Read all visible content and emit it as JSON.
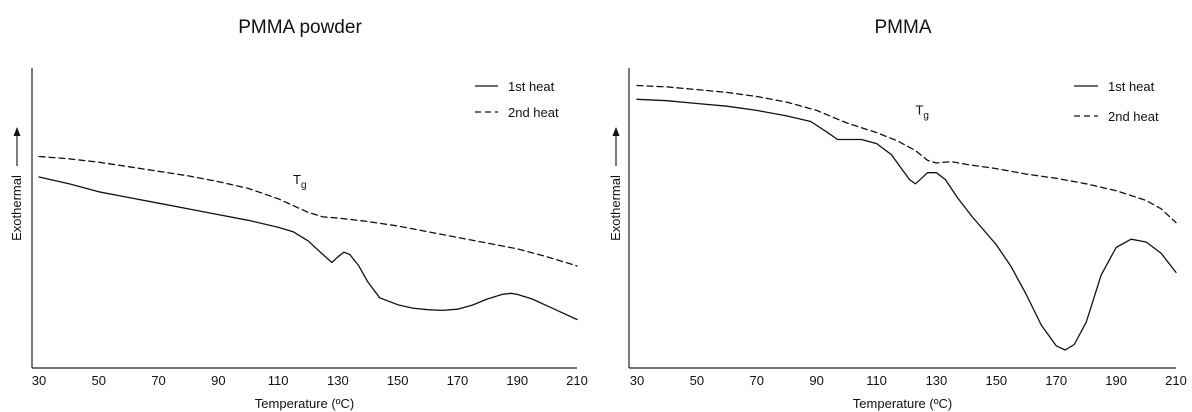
{
  "chart_data": [
    {
      "type": "line",
      "title": "PMMA powder",
      "xlabel": "Temperature (ºC)",
      "ylabel": "Exothermal",
      "xlim": [
        30,
        210
      ],
      "ylim": [
        0,
        100
      ],
      "xticks": [
        "30",
        "50",
        "70",
        "90",
        "110",
        "130",
        "150",
        "170",
        "190",
        "210"
      ],
      "y_ticks_shown": false,
      "grid": false,
      "legend_position": "top-right",
      "annotation": {
        "text": "T",
        "subscript": "g",
        "x": 115,
        "y": 72
      },
      "series": [
        {
          "name": "1st heat",
          "style": "solid",
          "points": [
            [
              30,
              75
            ],
            [
              40,
              72
            ],
            [
              50,
              68.5
            ],
            [
              60,
              66
            ],
            [
              70,
              63.5
            ],
            [
              80,
              61
            ],
            [
              90,
              58.5
            ],
            [
              100,
              56
            ],
            [
              110,
              53
            ],
            [
              115,
              51
            ],
            [
              120,
              47
            ],
            [
              125,
              41
            ],
            [
              128,
              37.5
            ],
            [
              130,
              40
            ],
            [
              132,
              42
            ],
            [
              134,
              41
            ],
            [
              137,
              36
            ],
            [
              140,
              29
            ],
            [
              144,
              22
            ],
            [
              150,
              19
            ],
            [
              155,
              17.5
            ],
            [
              160,
              16.8
            ],
            [
              165,
              16.5
            ],
            [
              170,
              17
            ],
            [
              175,
              18.8
            ],
            [
              180,
              21.5
            ],
            [
              185,
              23.5
            ],
            [
              188,
              24
            ],
            [
              190,
              23.5
            ],
            [
              195,
              21.5
            ],
            [
              200,
              18.5
            ],
            [
              205,
              15.5
            ],
            [
              210,
              12.5
            ]
          ]
        },
        {
          "name": "2nd heat",
          "style": "dashed",
          "points": [
            [
              30,
              84
            ],
            [
              40,
              83
            ],
            [
              50,
              81.5
            ],
            [
              60,
              79.5
            ],
            [
              70,
              77.5
            ],
            [
              80,
              75.5
            ],
            [
              90,
              73
            ],
            [
              100,
              70
            ],
            [
              110,
              65.5
            ],
            [
              120,
              59.5
            ],
            [
              125,
              57.5
            ],
            [
              130,
              57
            ],
            [
              140,
              55.5
            ],
            [
              150,
              53.5
            ],
            [
              160,
              51
            ],
            [
              170,
              48.5
            ],
            [
              180,
              46
            ],
            [
              190,
              43.5
            ],
            [
              200,
              40
            ],
            [
              210,
              36
            ]
          ]
        }
      ]
    },
    {
      "type": "line",
      "title": "PMMA",
      "xlabel": "Temperature (ºC)",
      "ylabel": "Exothermal",
      "xlim": [
        30,
        210
      ],
      "ylim": [
        0,
        100
      ],
      "xticks": [
        "30",
        "50",
        "70",
        "90",
        "110",
        "130",
        "150",
        "170",
        "190",
        "210"
      ],
      "y_ticks_shown": false,
      "grid": false,
      "legend_position": "top-right",
      "annotation": {
        "text": "T",
        "subscript": "g",
        "x": 123,
        "y": 85
      },
      "series": [
        {
          "name": "1st heat",
          "style": "solid",
          "points": [
            [
              30,
              90.5
            ],
            [
              40,
              90
            ],
            [
              50,
              89
            ],
            [
              60,
              88
            ],
            [
              70,
              86.5
            ],
            [
              80,
              84.5
            ],
            [
              88,
              82.5
            ],
            [
              93,
              79
            ],
            [
              97,
              76
            ],
            [
              100,
              76
            ],
            [
              105,
              76
            ],
            [
              110,
              74.5
            ],
            [
              115,
              70.5
            ],
            [
              118,
              66
            ],
            [
              121,
              61.5
            ],
            [
              123,
              60
            ],
            [
              125,
              62
            ],
            [
              127,
              64
            ],
            [
              130,
              64
            ],
            [
              133,
              61.5
            ],
            [
              137,
              55
            ],
            [
              142,
              48
            ],
            [
              150,
              38
            ],
            [
              155,
              30
            ],
            [
              160,
              20
            ],
            [
              165,
              9
            ],
            [
              170,
              1.5
            ],
            [
              173,
              0
            ],
            [
              176,
              2
            ],
            [
              180,
              10
            ],
            [
              185,
              27
            ],
            [
              190,
              37
            ],
            [
              195,
              40
            ],
            [
              200,
              39
            ],
            [
              205,
              35
            ],
            [
              210,
              28
            ]
          ]
        },
        {
          "name": "2nd heat",
          "style": "dashed",
          "points": [
            [
              30,
              95.5
            ],
            [
              40,
              95
            ],
            [
              50,
              94
            ],
            [
              60,
              93
            ],
            [
              70,
              91.5
            ],
            [
              80,
              89.5
            ],
            [
              90,
              86.5
            ],
            [
              100,
              82
            ],
            [
              110,
              78.5
            ],
            [
              117,
              75.5
            ],
            [
              123,
              72
            ],
            [
              127,
              68.5
            ],
            [
              130,
              67.5
            ],
            [
              135,
              68
            ],
            [
              140,
              67
            ],
            [
              150,
              65.5
            ],
            [
              160,
              63.5
            ],
            [
              170,
              62
            ],
            [
              180,
              60
            ],
            [
              190,
              57.5
            ],
            [
              200,
              54
            ],
            [
              205,
              51
            ],
            [
              210,
              46
            ]
          ]
        }
      ]
    }
  ]
}
